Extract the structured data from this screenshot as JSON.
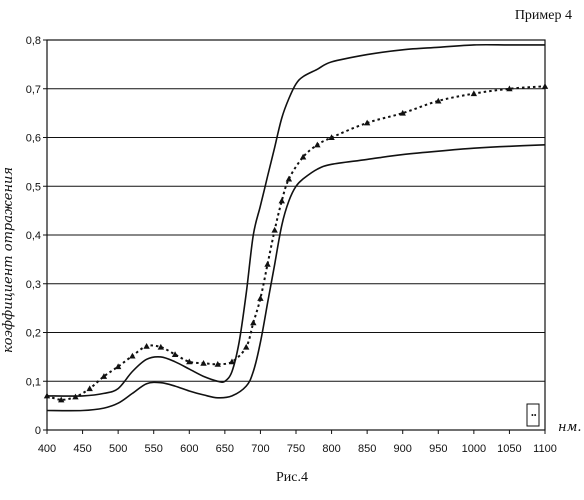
{
  "page": {
    "example_label": "Пример 4",
    "caption": "Рис.4"
  },
  "chart_data": {
    "type": "line",
    "title": "",
    "xlabel": "нм.",
    "ylabel": "коэффициент отражения",
    "xlim": [
      400,
      1100
    ],
    "ylim": [
      0,
      0.8
    ],
    "x_ticks": [
      400,
      450,
      500,
      550,
      600,
      650,
      700,
      750,
      800,
      850,
      900,
      950,
      1000,
      1050,
      1100
    ],
    "y_ticks": [
      "0",
      "0,1",
      "0,2",
      "0,3",
      "0,4",
      "0,5",
      "0,6",
      "0,7",
      "0,8"
    ],
    "grid": "horizontal",
    "legend": "none",
    "series": [
      {
        "style": "solid",
        "x": [
          400,
          450,
          480,
          500,
          520,
          540,
          560,
          580,
          600,
          620,
          640,
          650,
          660,
          670,
          680,
          690,
          700,
          710,
          720,
          730,
          740,
          750,
          760,
          780,
          800,
          850,
          900,
          950,
          1000,
          1050,
          1100
        ],
        "y": [
          0.07,
          0.07,
          0.075,
          0.085,
          0.12,
          0.145,
          0.15,
          0.14,
          0.125,
          0.11,
          0.1,
          0.1,
          0.12,
          0.18,
          0.28,
          0.4,
          0.46,
          0.52,
          0.58,
          0.64,
          0.68,
          0.71,
          0.725,
          0.74,
          0.755,
          0.77,
          0.78,
          0.785,
          0.79,
          0.79,
          0.79
        ]
      },
      {
        "style": "dotted",
        "markers": "triangle",
        "x": [
          400,
          420,
          440,
          460,
          480,
          500,
          520,
          540,
          560,
          580,
          600,
          620,
          640,
          660,
          680,
          690,
          700,
          710,
          720,
          730,
          740,
          760,
          780,
          800,
          850,
          900,
          950,
          1000,
          1050,
          1100
        ],
        "y": [
          0.07,
          0.062,
          0.068,
          0.085,
          0.11,
          0.13,
          0.152,
          0.172,
          0.17,
          0.155,
          0.14,
          0.137,
          0.135,
          0.14,
          0.17,
          0.22,
          0.27,
          0.34,
          0.41,
          0.47,
          0.515,
          0.56,
          0.585,
          0.6,
          0.63,
          0.65,
          0.675,
          0.69,
          0.7,
          0.705
        ]
      },
      {
        "style": "solid",
        "x": [
          400,
          450,
          480,
          500,
          520,
          540,
          560,
          580,
          600,
          620,
          640,
          660,
          680,
          690,
          700,
          710,
          720,
          730,
          740,
          750,
          760,
          780,
          800,
          850,
          900,
          950,
          1000,
          1050,
          1100
        ],
        "y": [
          0.04,
          0.04,
          0.045,
          0.055,
          0.075,
          0.095,
          0.097,
          0.09,
          0.08,
          0.072,
          0.066,
          0.07,
          0.09,
          0.12,
          0.18,
          0.26,
          0.34,
          0.42,
          0.47,
          0.5,
          0.515,
          0.535,
          0.545,
          0.555,
          0.565,
          0.572,
          0.578,
          0.582,
          0.585
        ]
      }
    ]
  }
}
